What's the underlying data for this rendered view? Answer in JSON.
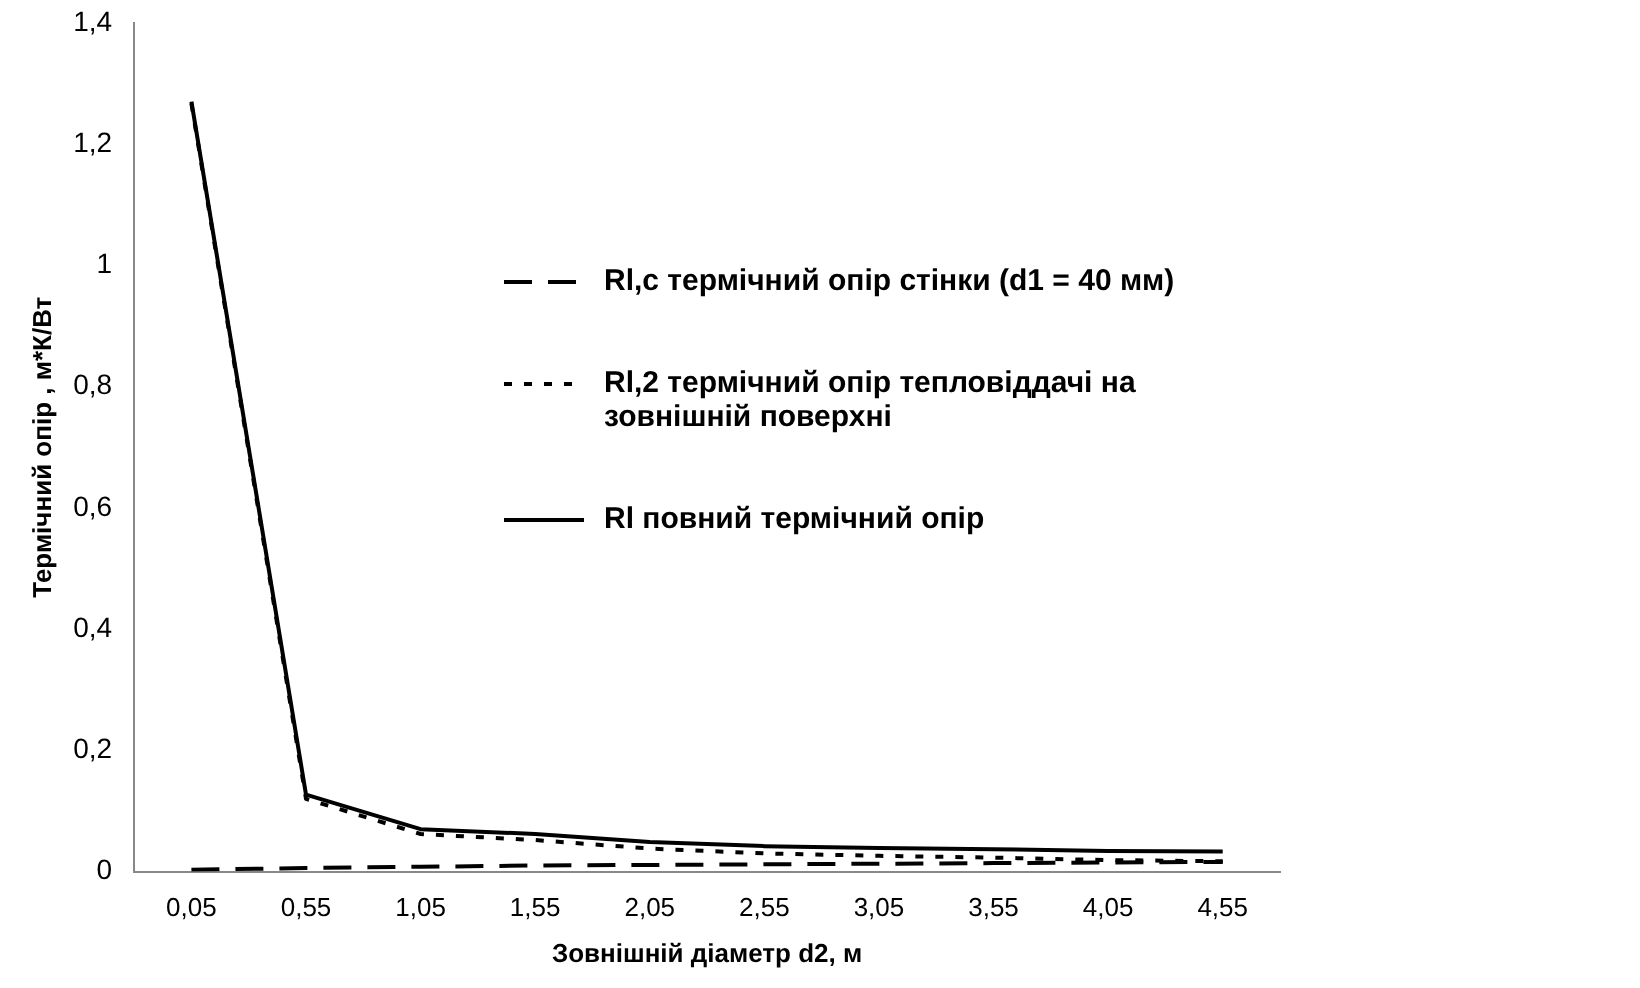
{
  "chart_data": {
    "type": "line",
    "xlabel": "Зовнішній діаметр d2, м",
    "ylabel": "Термічний опір , м*К/Вт",
    "categories": [
      "0,05",
      "0,55",
      "1,05",
      "1,55",
      "2,05",
      "2,55",
      "3,05",
      "3,55",
      "4,05",
      "4,55"
    ],
    "series": [
      {
        "name": "Rl,c термічний опір стінки (d1 = 40 мм)",
        "color": "#000000",
        "line_style": "dashed",
        "values": [
          0.003,
          0.006,
          0.008,
          0.01,
          0.011,
          0.012,
          0.013,
          0.014,
          0.015,
          0.016
        ]
      },
      {
        "name": "Rl,2 термічний опір тепловіддачі на зовнішній поверхні",
        "color": "#000000",
        "line_style": "dotted",
        "values": [
          1.267,
          0.12,
          0.062,
          0.052,
          0.038,
          0.03,
          0.026,
          0.023,
          0.019,
          0.017
        ]
      },
      {
        "name": "Rl повний термічний опір",
        "color": "#000000",
        "line_style": "solid",
        "values": [
          1.27,
          0.127,
          0.07,
          0.062,
          0.049,
          0.042,
          0.039,
          0.037,
          0.034,
          0.033
        ]
      }
    ],
    "ylim": [
      0,
      1.4
    ],
    "yticks": [
      0,
      {
        "value": 0.2,
        "label": "0,2"
      },
      {
        "value": 0.4,
        "label": "0,4"
      },
      {
        "value": 0.6,
        "label": "0,6"
      },
      {
        "value": 0.8,
        "label": "0,8"
      },
      1,
      {
        "value": 1.2,
        "label": "1,2"
      },
      {
        "value": 1.4,
        "label": "1,4"
      }
    ],
    "grid": false,
    "legend": "right",
    "marker": "none"
  }
}
